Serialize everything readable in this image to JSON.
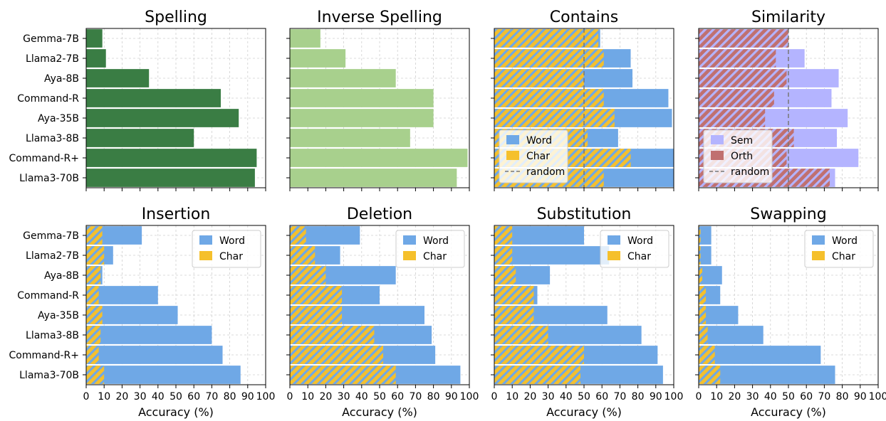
{
  "chart_data": {
    "type": "bar",
    "orientation": "horizontal",
    "models": [
      "Gemma-7B",
      "Llama2-7B",
      "Aya-8B",
      "Command-R",
      "Aya-35B",
      "Llama3-8B",
      "Command-R+",
      "Llama3-70B"
    ],
    "xlabel": "Accuracy (%)",
    "xlim": [
      0,
      100
    ],
    "xticks": [
      "0",
      "10",
      "20",
      "30",
      "40",
      "50",
      "60",
      "70",
      "80",
      "90",
      "100"
    ],
    "grid": true,
    "colors": {
      "spelling": "#3a7d44",
      "inverse_spelling": "#a8d08d",
      "word": "#6fa8e6",
      "char": "#f5c02c",
      "char_hatch": "#6fa8e6",
      "sem": "#b4b4ff",
      "orth": "#c07070",
      "orth_hatch": "#b4b4ff",
      "random": "#777777"
    },
    "panels": [
      {
        "title": "Spelling",
        "kind": "single",
        "color_key": "spelling",
        "values": [
          9,
          11,
          35,
          75,
          85,
          60,
          95,
          94
        ]
      },
      {
        "title": "Inverse Spelling",
        "kind": "single",
        "color_key": "inverse_spelling",
        "values": [
          17,
          31,
          59,
          80,
          80,
          67,
          99,
          93
        ]
      },
      {
        "title": "Contains",
        "kind": "word_char",
        "random": 50,
        "legend_position": "lower-left",
        "legend": [
          "Word",
          "Char",
          "random"
        ],
        "word": [
          59,
          76,
          77,
          97,
          99,
          69,
          100,
          100
        ],
        "char": [
          58,
          61,
          50,
          61,
          67,
          52,
          76,
          61
        ]
      },
      {
        "title": "Similarity",
        "kind": "sem_orth",
        "random": 50,
        "legend_position": "lower-left",
        "legend": [
          "Sem",
          "Orth",
          "random"
        ],
        "sem": [
          42,
          59,
          78,
          74,
          83,
          77,
          89,
          76
        ],
        "orth": [
          50,
          43,
          49,
          42,
          37,
          53,
          49,
          73
        ]
      },
      {
        "title": "Insertion",
        "kind": "word_char",
        "legend_position": "upper-right",
        "legend": [
          "Word",
          "Char"
        ],
        "word": [
          31,
          15,
          9,
          40,
          51,
          70,
          76,
          86
        ],
        "char": [
          9,
          10,
          8,
          7,
          9,
          8,
          7,
          10
        ]
      },
      {
        "title": "Deletion",
        "kind": "word_char",
        "legend_position": "upper-right",
        "legend": [
          "Word",
          "Char"
        ],
        "word": [
          39,
          28,
          59,
          50,
          75,
          79,
          81,
          95
        ],
        "char": [
          9,
          14,
          20,
          29,
          29,
          47,
          52,
          59
        ]
      },
      {
        "title": "Substitution",
        "kind": "word_char",
        "legend_position": "upper-right",
        "legend": [
          "Word",
          "Char"
        ],
        "word": [
          50,
          64,
          31,
          24,
          63,
          82,
          91,
          94
        ],
        "char": [
          10,
          10,
          12,
          22,
          22,
          30,
          50,
          48
        ]
      },
      {
        "title": "Swapping",
        "kind": "word_char",
        "legend_position": "upper-right",
        "legend": [
          "Word",
          "Char"
        ],
        "word": [
          7,
          7,
          13,
          12,
          22,
          36,
          68,
          76
        ],
        "char": [
          1,
          1,
          2,
          4,
          4,
          5,
          9,
          12
        ]
      }
    ]
  }
}
